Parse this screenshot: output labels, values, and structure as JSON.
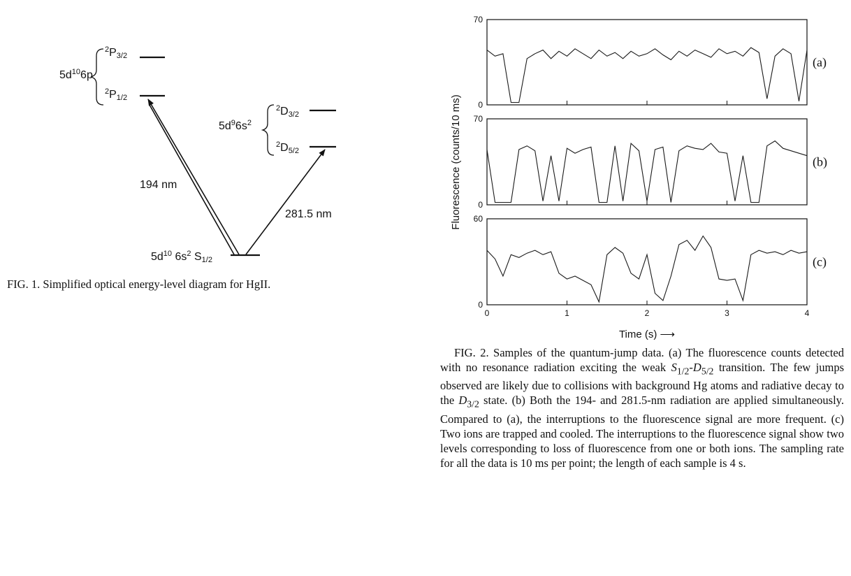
{
  "figure1": {
    "levels": {
      "p_config": [
        {
          "text": "5d"
        },
        {
          "text": "10",
          "style": "sup"
        },
        {
          "text": "6p"
        }
      ],
      "p32": [
        {
          "text": "2",
          "style": "sup"
        },
        {
          "text": "P"
        },
        {
          "text": "3/2",
          "style": "sub"
        }
      ],
      "p12": [
        {
          "text": "2",
          "style": "sup"
        },
        {
          "text": "P"
        },
        {
          "text": "1/2",
          "style": "sub"
        }
      ],
      "d_config": [
        {
          "text": "5d"
        },
        {
          "text": "9",
          "style": "sup"
        },
        {
          "text": "6s"
        },
        {
          "text": "2",
          "style": "sup"
        }
      ],
      "d32": [
        {
          "text": "2",
          "style": "sup"
        },
        {
          "text": "D"
        },
        {
          "text": "3/2",
          "style": "sub"
        }
      ],
      "d52": [
        {
          "text": "2",
          "style": "sup"
        },
        {
          "text": "D"
        },
        {
          "text": "5/2",
          "style": "sub"
        }
      ],
      "ground": [
        {
          "text": "5d"
        },
        {
          "text": "10",
          "style": "sup"
        },
        {
          "text": " 6s"
        },
        {
          "text": "2",
          "style": "sup"
        },
        {
          "text": " S"
        },
        {
          "text": "1/2",
          "style": "sub"
        }
      ]
    },
    "transitions": [
      "194 nm",
      "281.5 nm"
    ],
    "caption": [
      {
        "text": "FIG. 1.  Simplified optical energy-level diagram for Hg"
      },
      {
        "text": "II",
        "style": "smallcaps"
      },
      {
        "text": "."
      }
    ]
  },
  "chart_data": [
    {
      "type": "line",
      "label": "(a)",
      "x": [
        0,
        0.1,
        0.2,
        0.3,
        0.4,
        0.5,
        0.6,
        0.7,
        0.8,
        0.9,
        1,
        1.1,
        1.2,
        1.3,
        1.4,
        1.5,
        1.6,
        1.7,
        1.8,
        1.9,
        2,
        2.1,
        2.2,
        2.3,
        2.4,
        2.5,
        2.6,
        2.7,
        2.8,
        2.9,
        3,
        3.1,
        3.2,
        3.3,
        3.4,
        3.5,
        3.6,
        3.7,
        3.8,
        3.9,
        4
      ],
      "values": [
        45,
        40,
        42,
        2,
        2,
        38,
        42,
        45,
        38,
        44,
        40,
        46,
        42,
        38,
        45,
        40,
        43,
        38,
        44,
        40,
        42,
        46,
        41,
        37,
        44,
        40,
        45,
        42,
        39,
        46,
        42,
        44,
        40,
        47,
        43,
        5,
        40,
        46,
        42,
        3,
        45
      ],
      "color": "#1a1a1a",
      "xlim": [
        0,
        4
      ],
      "xticks": [
        0,
        1,
        2,
        3,
        4
      ],
      "xtick_labels": false,
      "ylim": [
        0,
        70
      ],
      "yticks": [
        0,
        70
      ]
    },
    {
      "type": "line",
      "label": "(b)",
      "ylabel": "Fluorescence (counts/10 ms)",
      "x": [
        0,
        0.1,
        0.2,
        0.3,
        0.4,
        0.5,
        0.6,
        0.7,
        0.8,
        0.9,
        1,
        1.1,
        1.2,
        1.3,
        1.4,
        1.5,
        1.6,
        1.7,
        1.8,
        1.9,
        2,
        2.1,
        2.2,
        2.3,
        2.4,
        2.5,
        2.6,
        2.7,
        2.8,
        2.9,
        3,
        3.1,
        3.2,
        3.3,
        3.4,
        3.5,
        3.6,
        3.7,
        3.8,
        3.9,
        4
      ],
      "values": [
        45,
        2,
        2,
        2,
        45,
        48,
        44,
        3,
        40,
        3,
        46,
        42,
        45,
        47,
        2,
        2,
        48,
        3,
        50,
        44,
        3,
        45,
        47,
        2,
        44,
        48,
        46,
        45,
        50,
        43,
        42,
        3,
        40,
        2,
        2,
        48,
        52,
        46,
        44,
        42,
        40
      ],
      "color": "#1a1a1a",
      "xlim": [
        0,
        4
      ],
      "xticks": [
        0,
        1,
        2,
        3,
        4
      ],
      "xtick_labels": false,
      "ylim": [
        0,
        70
      ],
      "yticks": [
        0,
        70
      ]
    },
    {
      "type": "line",
      "label": "(c)",
      "xlabel": "Time (s) ⟶",
      "x": [
        0,
        0.1,
        0.2,
        0.3,
        0.4,
        0.5,
        0.6,
        0.7,
        0.8,
        0.9,
        1,
        1.1,
        1.2,
        1.3,
        1.4,
        1.5,
        1.6,
        1.7,
        1.8,
        1.9,
        2,
        2.1,
        2.2,
        2.3,
        2.4,
        2.5,
        2.6,
        2.7,
        2.8,
        2.9,
        3,
        3.1,
        3.2,
        3.3,
        3.4,
        3.5,
        3.6,
        3.7,
        3.8,
        3.9,
        4
      ],
      "values": [
        38,
        32,
        20,
        35,
        33,
        36,
        38,
        35,
        37,
        22,
        18,
        20,
        17,
        14,
        2,
        35,
        40,
        36,
        22,
        18,
        35,
        8,
        3,
        20,
        42,
        45,
        38,
        48,
        40,
        18,
        17,
        18,
        3,
        35,
        38,
        36,
        37,
        35,
        38,
        36,
        37
      ],
      "color": "#1a1a1a",
      "xlim": [
        0,
        4
      ],
      "xticks": [
        0,
        1,
        2,
        3,
        4
      ],
      "xtick_labels": true,
      "ylim": [
        0,
        60
      ],
      "yticks": [
        0,
        60
      ]
    }
  ],
  "figure2_caption": [
    {
      "text": "FIG. 2.  Samples of the quantum-jump data.  (a) The fluorescence counts detected with no resonance radiation exciting the weak "
    },
    {
      "text": "S",
      "style": "italic"
    },
    {
      "text": "1/2",
      "style": "sub"
    },
    {
      "text": "-"
    },
    {
      "text": "D",
      "style": "italic"
    },
    {
      "text": "5/2",
      "style": "sub"
    },
    {
      "text": " transition. The few jumps observed are likely due to collisions with background Hg atoms and radiative decay to the "
    },
    {
      "text": "D",
      "style": "italic"
    },
    {
      "text": "3/2",
      "style": "sub"
    },
    {
      "text": " state.  (b) Both the 194- and 281.5-nm radiation are applied simultaneously.  Compared to (a), the interruptions to the fluorescence signal are more frequent.  (c) Two ions are trapped and cooled.  The interruptions to the fluorescence signal show two levels corresponding to loss of fluorescence from one or both ions.  The sampling rate for all the data is 10 ms per point; the length of each sample is 4 s."
    }
  ]
}
